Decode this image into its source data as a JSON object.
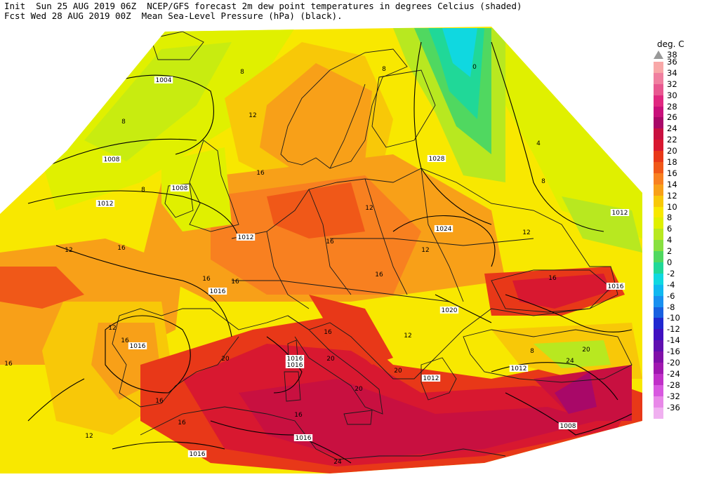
{
  "header": {
    "line1": "Init  Sun 25 AUG 2019 06Z  NCEP/GFS forecast 2m dew point temperatures in degrees Celcius (shaded)",
    "line2": "Fcst Wed 28 AUG 2019 00Z  Mean Sea-Level Pressure (hPa) (black)."
  },
  "legend": {
    "unit": "deg. C",
    "top_label": "38",
    "levels": [
      {
        "label": "36",
        "color": "#f8a8a8"
      },
      {
        "label": "34",
        "color": "#f080a0"
      },
      {
        "label": "32",
        "color": "#e85890"
      },
      {
        "label": "30",
        "color": "#e02880"
      },
      {
        "label": "28",
        "color": "#c8107a"
      },
      {
        "label": "26",
        "color": "#a80868"
      },
      {
        "label": "24",
        "color": "#c81040"
      },
      {
        "label": "22",
        "color": "#d81830"
      },
      {
        "label": "20",
        "color": "#e83818"
      },
      {
        "label": "18",
        "color": "#f05818"
      },
      {
        "label": "16",
        "color": "#f88020"
      },
      {
        "label": "14",
        "color": "#f8a018"
      },
      {
        "label": "12",
        "color": "#f8c808"
      },
      {
        "label": "10",
        "color": "#f8e800"
      },
      {
        "label": "8",
        "color": "#e0f000"
      },
      {
        "label": "6",
        "color": "#b8e820"
      },
      {
        "label": "4",
        "color": "#88e040"
      },
      {
        "label": "2",
        "color": "#50d860"
      },
      {
        "label": "0",
        "color": "#20d898"
      },
      {
        "label": "-2",
        "color": "#10d8e0"
      },
      {
        "label": "-4",
        "color": "#10b8f0"
      },
      {
        "label": "-6",
        "color": "#1890f0"
      },
      {
        "label": "-8",
        "color": "#1860e0"
      },
      {
        "label": "-10",
        "color": "#2028d0"
      },
      {
        "label": "-12",
        "color": "#4010c0"
      },
      {
        "label": "-14",
        "color": "#6010b0"
      },
      {
        "label": "-16",
        "color": "#8010a8"
      },
      {
        "label": "-20",
        "color": "#a018b0"
      },
      {
        "label": "-24",
        "color": "#c030c8"
      },
      {
        "label": "-28",
        "color": "#d858e0"
      },
      {
        "label": "-32",
        "color": "#e888e8"
      },
      {
        "label": "-36",
        "color": "#f0b0f0"
      }
    ]
  },
  "pressure_labels": [
    {
      "text": "1004"
    },
    {
      "text": "1008"
    },
    {
      "text": "1012"
    },
    {
      "text": "1008"
    },
    {
      "text": "1012"
    },
    {
      "text": "1016"
    },
    {
      "text": "1016"
    },
    {
      "text": "1028"
    },
    {
      "text": "1024"
    },
    {
      "text": "1020"
    },
    {
      "text": "1012"
    },
    {
      "text": "1016"
    },
    {
      "text": "1012"
    },
    {
      "text": "1008"
    },
    {
      "text": "1016"
    },
    {
      "text": "1016"
    },
    {
      "text": "1012"
    },
    {
      "text": "1016"
    },
    {
      "text": "1016"
    }
  ],
  "dewpoint_labels": [
    {
      "text": "8"
    },
    {
      "text": "8"
    },
    {
      "text": "12"
    },
    {
      "text": "8"
    },
    {
      "text": "12"
    },
    {
      "text": "16"
    },
    {
      "text": "16"
    },
    {
      "text": "16"
    },
    {
      "text": "16"
    },
    {
      "text": "12"
    },
    {
      "text": "12"
    },
    {
      "text": "16"
    },
    {
      "text": "12"
    },
    {
      "text": "16"
    },
    {
      "text": "16"
    },
    {
      "text": "16"
    },
    {
      "text": "16"
    },
    {
      "text": "20"
    },
    {
      "text": "20"
    },
    {
      "text": "20"
    },
    {
      "text": "24"
    },
    {
      "text": "20"
    },
    {
      "text": "16"
    },
    {
      "text": "12"
    },
    {
      "text": "8"
    },
    {
      "text": "4"
    },
    {
      "text": "0"
    },
    {
      "text": "12"
    },
    {
      "text": "8"
    },
    {
      "text": "16"
    },
    {
      "text": "20"
    },
    {
      "text": "24"
    },
    {
      "text": "16"
    },
    {
      "text": "16"
    },
    {
      "text": "12"
    },
    {
      "text": "8"
    }
  ]
}
